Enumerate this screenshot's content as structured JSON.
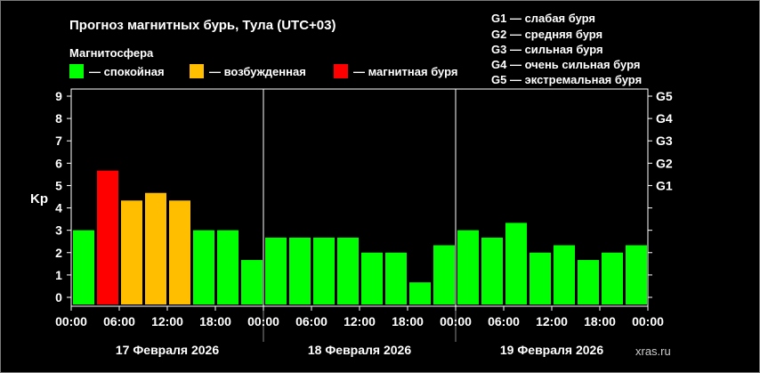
{
  "title": "Прогноз магнитных бурь, Тула (UTC+03)",
  "legend": {
    "heading": "Магнитосфера",
    "items": [
      {
        "label": "— спокойная",
        "color": "#00ff00"
      },
      {
        "label": "— возбужденная",
        "color": "#ffbf00"
      },
      {
        "label": "— магнитная буря",
        "color": "#ff0000"
      }
    ]
  },
  "storm_scale": [
    "G1 — слабая буря",
    "G2 — средняя буря",
    "G3 — сильная буря",
    "G4 — очень сильная буря",
    "G5 — экстремальная буря"
  ],
  "watermark": "xras.ru",
  "colors": {
    "quiet": "#00ff00",
    "disturbed": "#ffbf00",
    "storm": "#ff0000",
    "background": "#000000",
    "text": "#ffffff"
  },
  "chart_data": {
    "type": "bar",
    "ylabel": "Kp",
    "ylim": [
      0,
      9
    ],
    "yticks": [
      "0",
      "1",
      "2",
      "3",
      "4",
      "5",
      "6",
      "7",
      "8",
      "9"
    ],
    "right_ticks": [
      {
        "label": "G1",
        "at": 5
      },
      {
        "label": "G2",
        "at": 6
      },
      {
        "label": "G3",
        "at": 7
      },
      {
        "label": "G4",
        "at": 8
      },
      {
        "label": "G5",
        "at": 9
      }
    ],
    "xtick_labels": [
      "00:00",
      "06:00",
      "12:00",
      "18:00",
      "00:00",
      "06:00",
      "12:00",
      "18:00",
      "00:00",
      "06:00",
      "12:00",
      "18:00",
      "00:00"
    ],
    "days": [
      "17 Февраля 2026",
      "18 Февраля 2026",
      "19 Февраля 2026"
    ],
    "values": [
      3.0,
      5.67,
      4.33,
      4.67,
      4.33,
      3.0,
      3.0,
      1.67,
      2.67,
      2.67,
      2.67,
      2.67,
      2.0,
      2.0,
      0.67,
      2.33,
      3.0,
      2.67,
      3.33,
      2.0,
      2.33,
      1.67,
      2.0,
      2.33
    ],
    "levels": [
      "quiet",
      "storm",
      "disturbed",
      "disturbed",
      "disturbed",
      "quiet",
      "quiet",
      "quiet",
      "quiet",
      "quiet",
      "quiet",
      "quiet",
      "quiet",
      "quiet",
      "quiet",
      "quiet",
      "quiet",
      "quiet",
      "quiet",
      "quiet",
      "quiet",
      "quiet",
      "quiet",
      "quiet"
    ]
  }
}
